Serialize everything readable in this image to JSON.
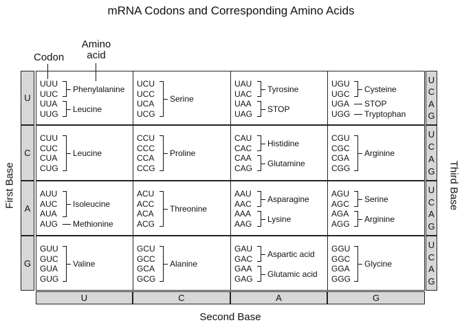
{
  "title": "mRNA Codons and Corresponding Amino Acids",
  "labels": {
    "codon": "Codon",
    "amino_acid_line1": "Amino",
    "amino_acid_line2": "acid",
    "first_base": "First Base",
    "second_base": "Second Base",
    "third_base": "Third Base"
  },
  "first_bases": [
    "U",
    "C",
    "A",
    "G"
  ],
  "second_bases": [
    "U",
    "C",
    "A",
    "G"
  ],
  "third_bases": [
    "U",
    "C",
    "A",
    "G"
  ],
  "cells": [
    [
      {
        "codons": [
          "UUU",
          "UUC",
          "UUA",
          "UUG"
        ],
        "groups": [
          {
            "from": 0,
            "to": 1,
            "aa": "Phenylalanine"
          },
          {
            "from": 2,
            "to": 3,
            "aa": "Leucine"
          }
        ]
      },
      {
        "codons": [
          "UCU",
          "UCC",
          "UCA",
          "UCG"
        ],
        "groups": [
          {
            "from": 0,
            "to": 3,
            "aa": "Serine"
          }
        ]
      },
      {
        "codons": [
          "UAU",
          "UAC",
          "UAA",
          "UAG"
        ],
        "groups": [
          {
            "from": 0,
            "to": 1,
            "aa": "Tyrosine"
          },
          {
            "from": 2,
            "to": 3,
            "aa": "STOP"
          }
        ]
      },
      {
        "codons": [
          "UGU",
          "UGC",
          "UGA",
          "UGG"
        ],
        "groups": [
          {
            "from": 0,
            "to": 1,
            "aa": "Cysteine"
          },
          {
            "from": 2,
            "to": 2,
            "aa": "STOP"
          },
          {
            "from": 3,
            "to": 3,
            "aa": "Tryptophan"
          }
        ]
      }
    ],
    [
      {
        "codons": [
          "CUU",
          "CUC",
          "CUA",
          "CUG"
        ],
        "groups": [
          {
            "from": 0,
            "to": 3,
            "aa": "Leucine"
          }
        ]
      },
      {
        "codons": [
          "CCU",
          "CCC",
          "CCA",
          "CCG"
        ],
        "groups": [
          {
            "from": 0,
            "to": 3,
            "aa": "Proline"
          }
        ]
      },
      {
        "codons": [
          "CAU",
          "CAC",
          "CAA",
          "CAG"
        ],
        "groups": [
          {
            "from": 0,
            "to": 1,
            "aa": "Histidine"
          },
          {
            "from": 2,
            "to": 3,
            "aa": "Glutamine"
          }
        ]
      },
      {
        "codons": [
          "CGU",
          "CGC",
          "CGA",
          "CGG"
        ],
        "groups": [
          {
            "from": 0,
            "to": 3,
            "aa": "Arginine"
          }
        ]
      }
    ],
    [
      {
        "codons": [
          "AUU",
          "AUC",
          "AUA",
          "AUG"
        ],
        "groups": [
          {
            "from": 0,
            "to": 2,
            "aa": "Isoleucine"
          },
          {
            "from": 3,
            "to": 3,
            "aa": "Methionine"
          }
        ]
      },
      {
        "codons": [
          "ACU",
          "ACC",
          "ACA",
          "ACG"
        ],
        "groups": [
          {
            "from": 0,
            "to": 3,
            "aa": "Threonine"
          }
        ]
      },
      {
        "codons": [
          "AAU",
          "AAC",
          "AAA",
          "AAG"
        ],
        "groups": [
          {
            "from": 0,
            "to": 1,
            "aa": "Asparagine"
          },
          {
            "from": 2,
            "to": 3,
            "aa": "Lysine"
          }
        ]
      },
      {
        "codons": [
          "AGU",
          "AGC",
          "AGA",
          "AGG"
        ],
        "groups": [
          {
            "from": 0,
            "to": 1,
            "aa": "Serine"
          },
          {
            "from": 2,
            "to": 3,
            "aa": "Arginine"
          }
        ]
      }
    ],
    [
      {
        "codons": [
          "GUU",
          "GUC",
          "GUA",
          "GUG"
        ],
        "groups": [
          {
            "from": 0,
            "to": 3,
            "aa": "Valine"
          }
        ]
      },
      {
        "codons": [
          "GCU",
          "GCC",
          "GCA",
          "GCG"
        ],
        "groups": [
          {
            "from": 0,
            "to": 3,
            "aa": "Alanine"
          }
        ]
      },
      {
        "codons": [
          "GAU",
          "GAC",
          "GAA",
          "GAG"
        ],
        "groups": [
          {
            "from": 0,
            "to": 1,
            "aa": "Aspartic acid"
          },
          {
            "from": 2,
            "to": 3,
            "aa": "Glutamic acid"
          }
        ]
      },
      {
        "codons": [
          "GGU",
          "GGC",
          "GGA",
          "GGG"
        ],
        "groups": [
          {
            "from": 0,
            "to": 3,
            "aa": "Glycine"
          }
        ]
      }
    ]
  ]
}
